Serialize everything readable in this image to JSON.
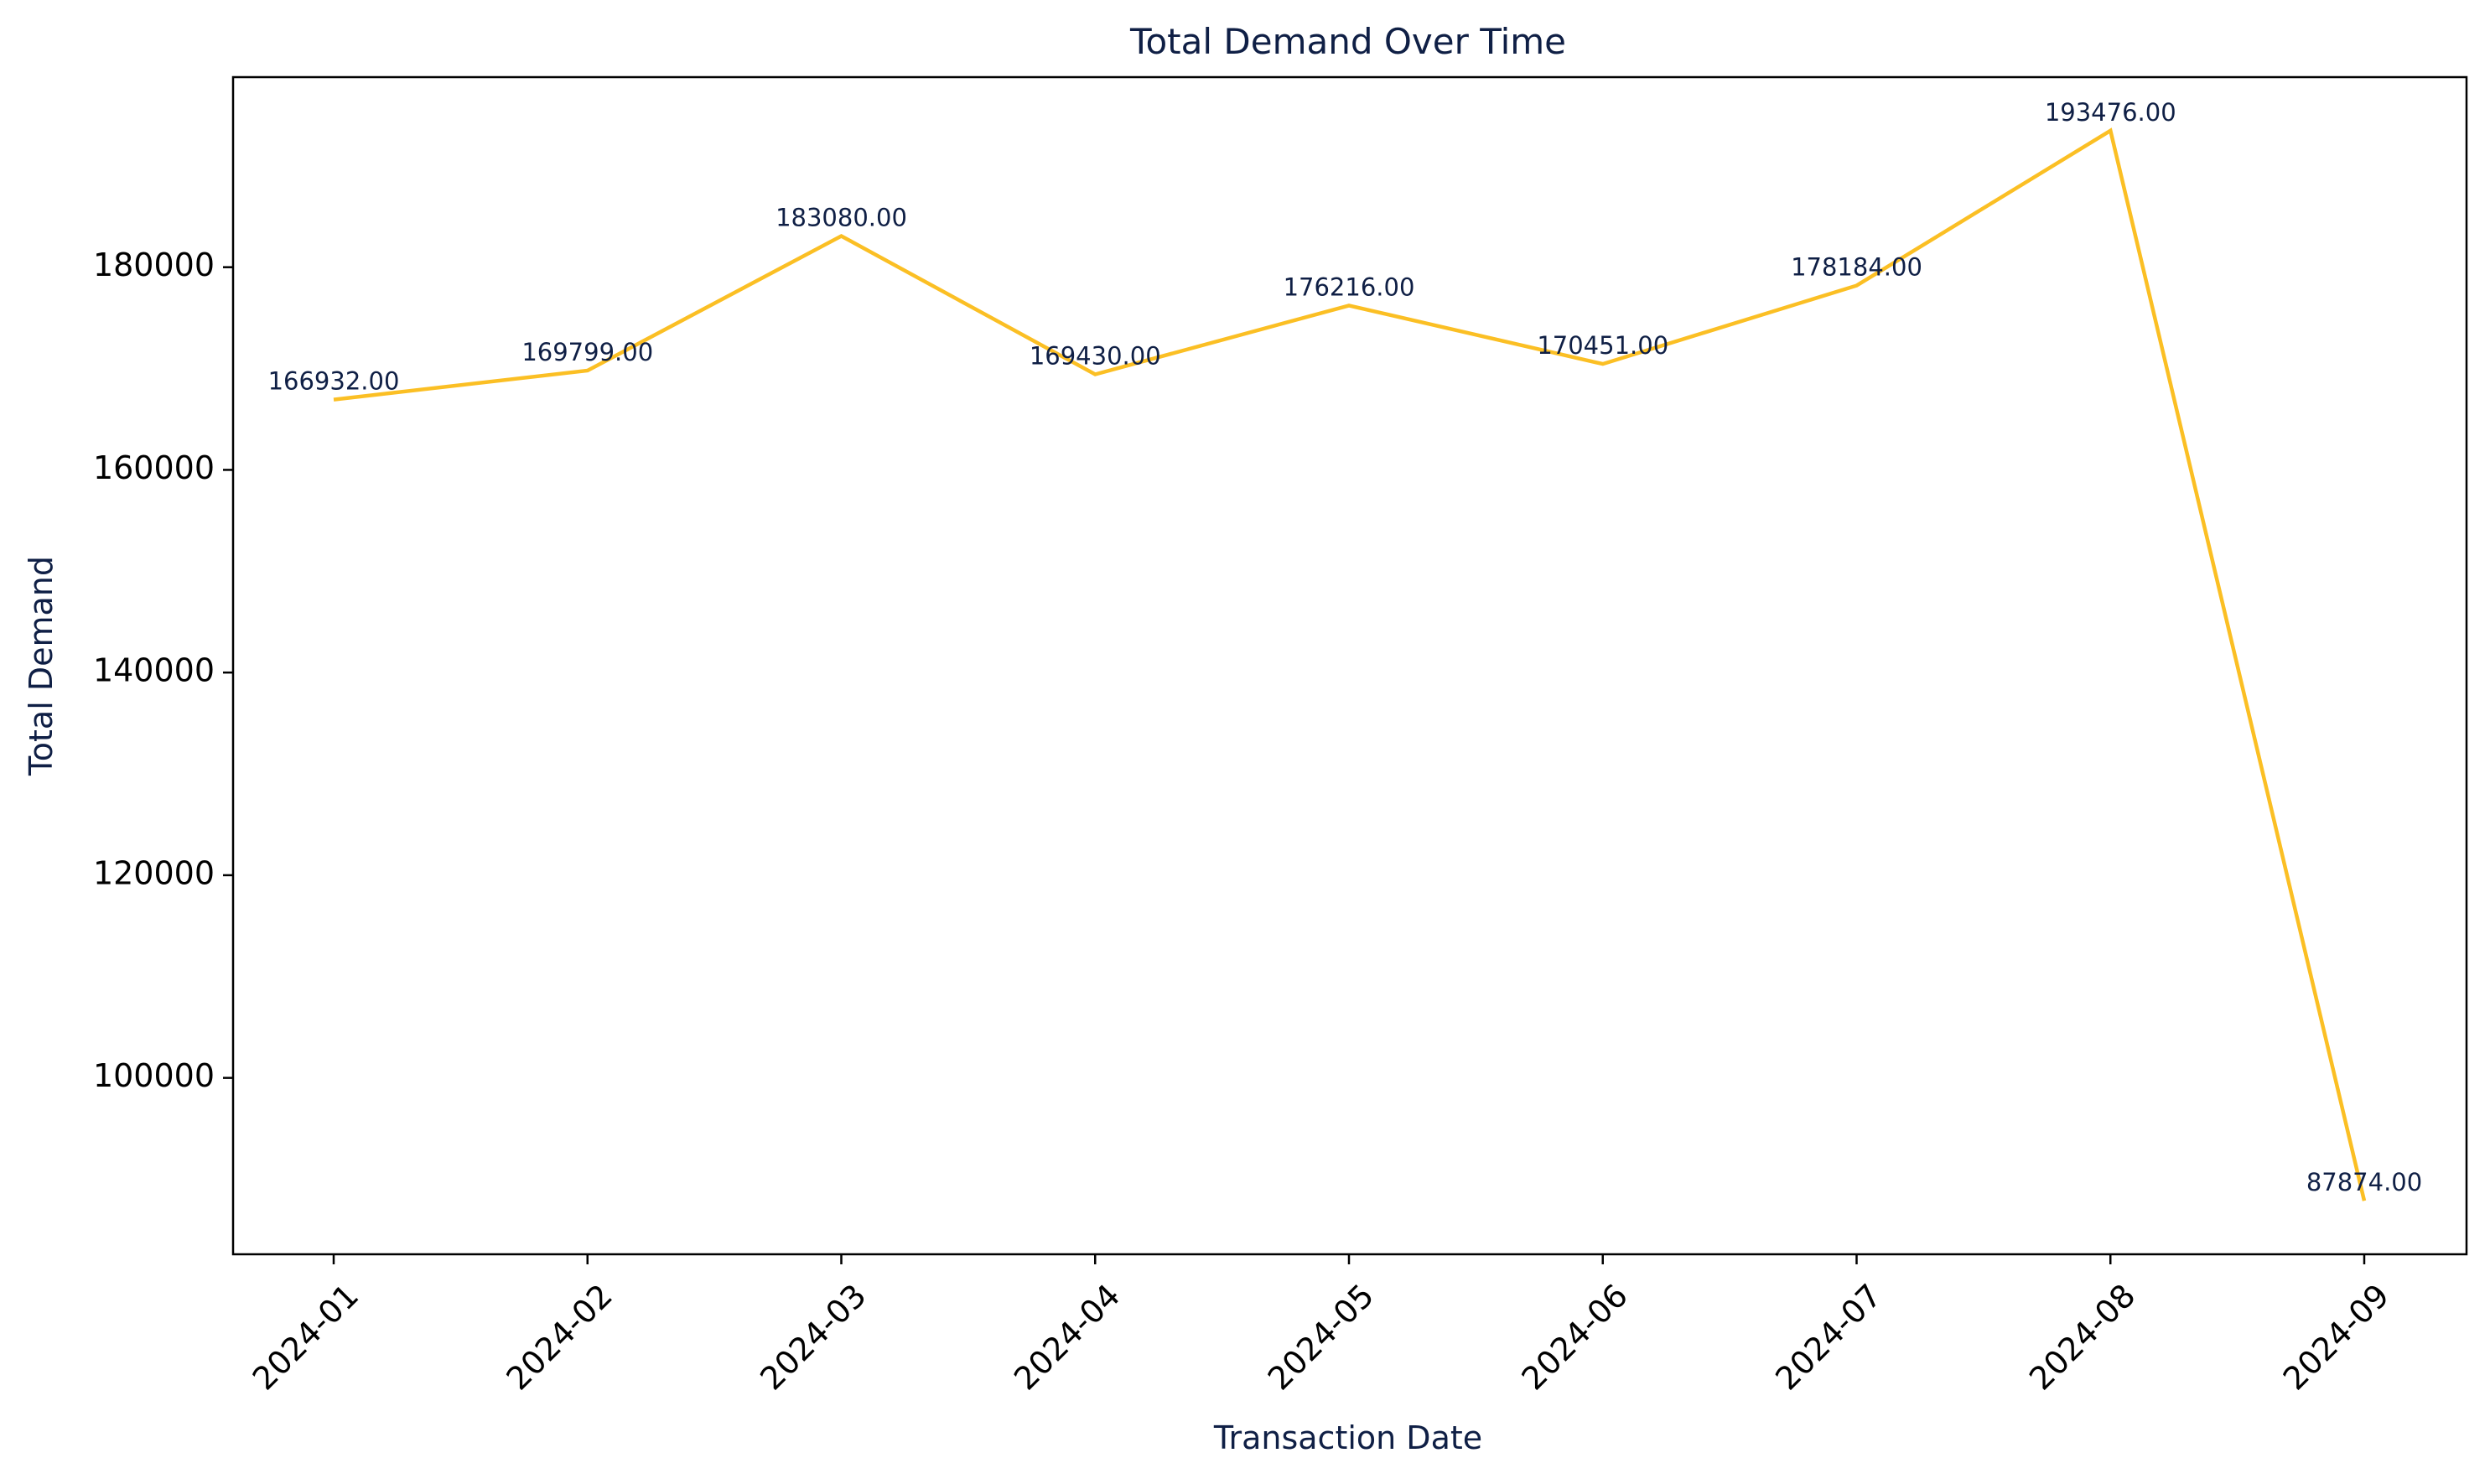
{
  "chart_data": {
    "type": "line",
    "title": "Total Demand Over Time",
    "xlabel": "Transaction Date",
    "ylabel": "Total Demand",
    "categories": [
      "2024-01",
      "2024-02",
      "2024-03",
      "2024-04",
      "2024-05",
      "2024-06",
      "2024-07",
      "2024-08",
      "2024-09"
    ],
    "series": [
      {
        "values": [
          166932,
          169799,
          183080,
          169430,
          176216,
          170451,
          178184,
          193476,
          87874
        ],
        "color": "#fbbf24"
      }
    ],
    "data_labels": [
      "166932.00",
      "169799.00",
      "183080.00",
      "169430.00",
      "176216.00",
      "170451.00",
      "178184.00",
      "193476.00",
      "87874.00"
    ],
    "y_ticks": [
      100000,
      120000,
      140000,
      160000,
      180000
    ],
    "y_tick_labels": [
      "100000",
      "120000",
      "140000",
      "160000",
      "180000"
    ],
    "ylim": [
      82594,
      198756
    ],
    "grid": false,
    "legend": "none",
    "colors": {
      "line": "#fbbf24",
      "title": "#0f1f45",
      "axis_label": "#0f1f45",
      "data_label": "#0f1f45",
      "tick_label": "#000000",
      "axes": "#000000"
    }
  }
}
